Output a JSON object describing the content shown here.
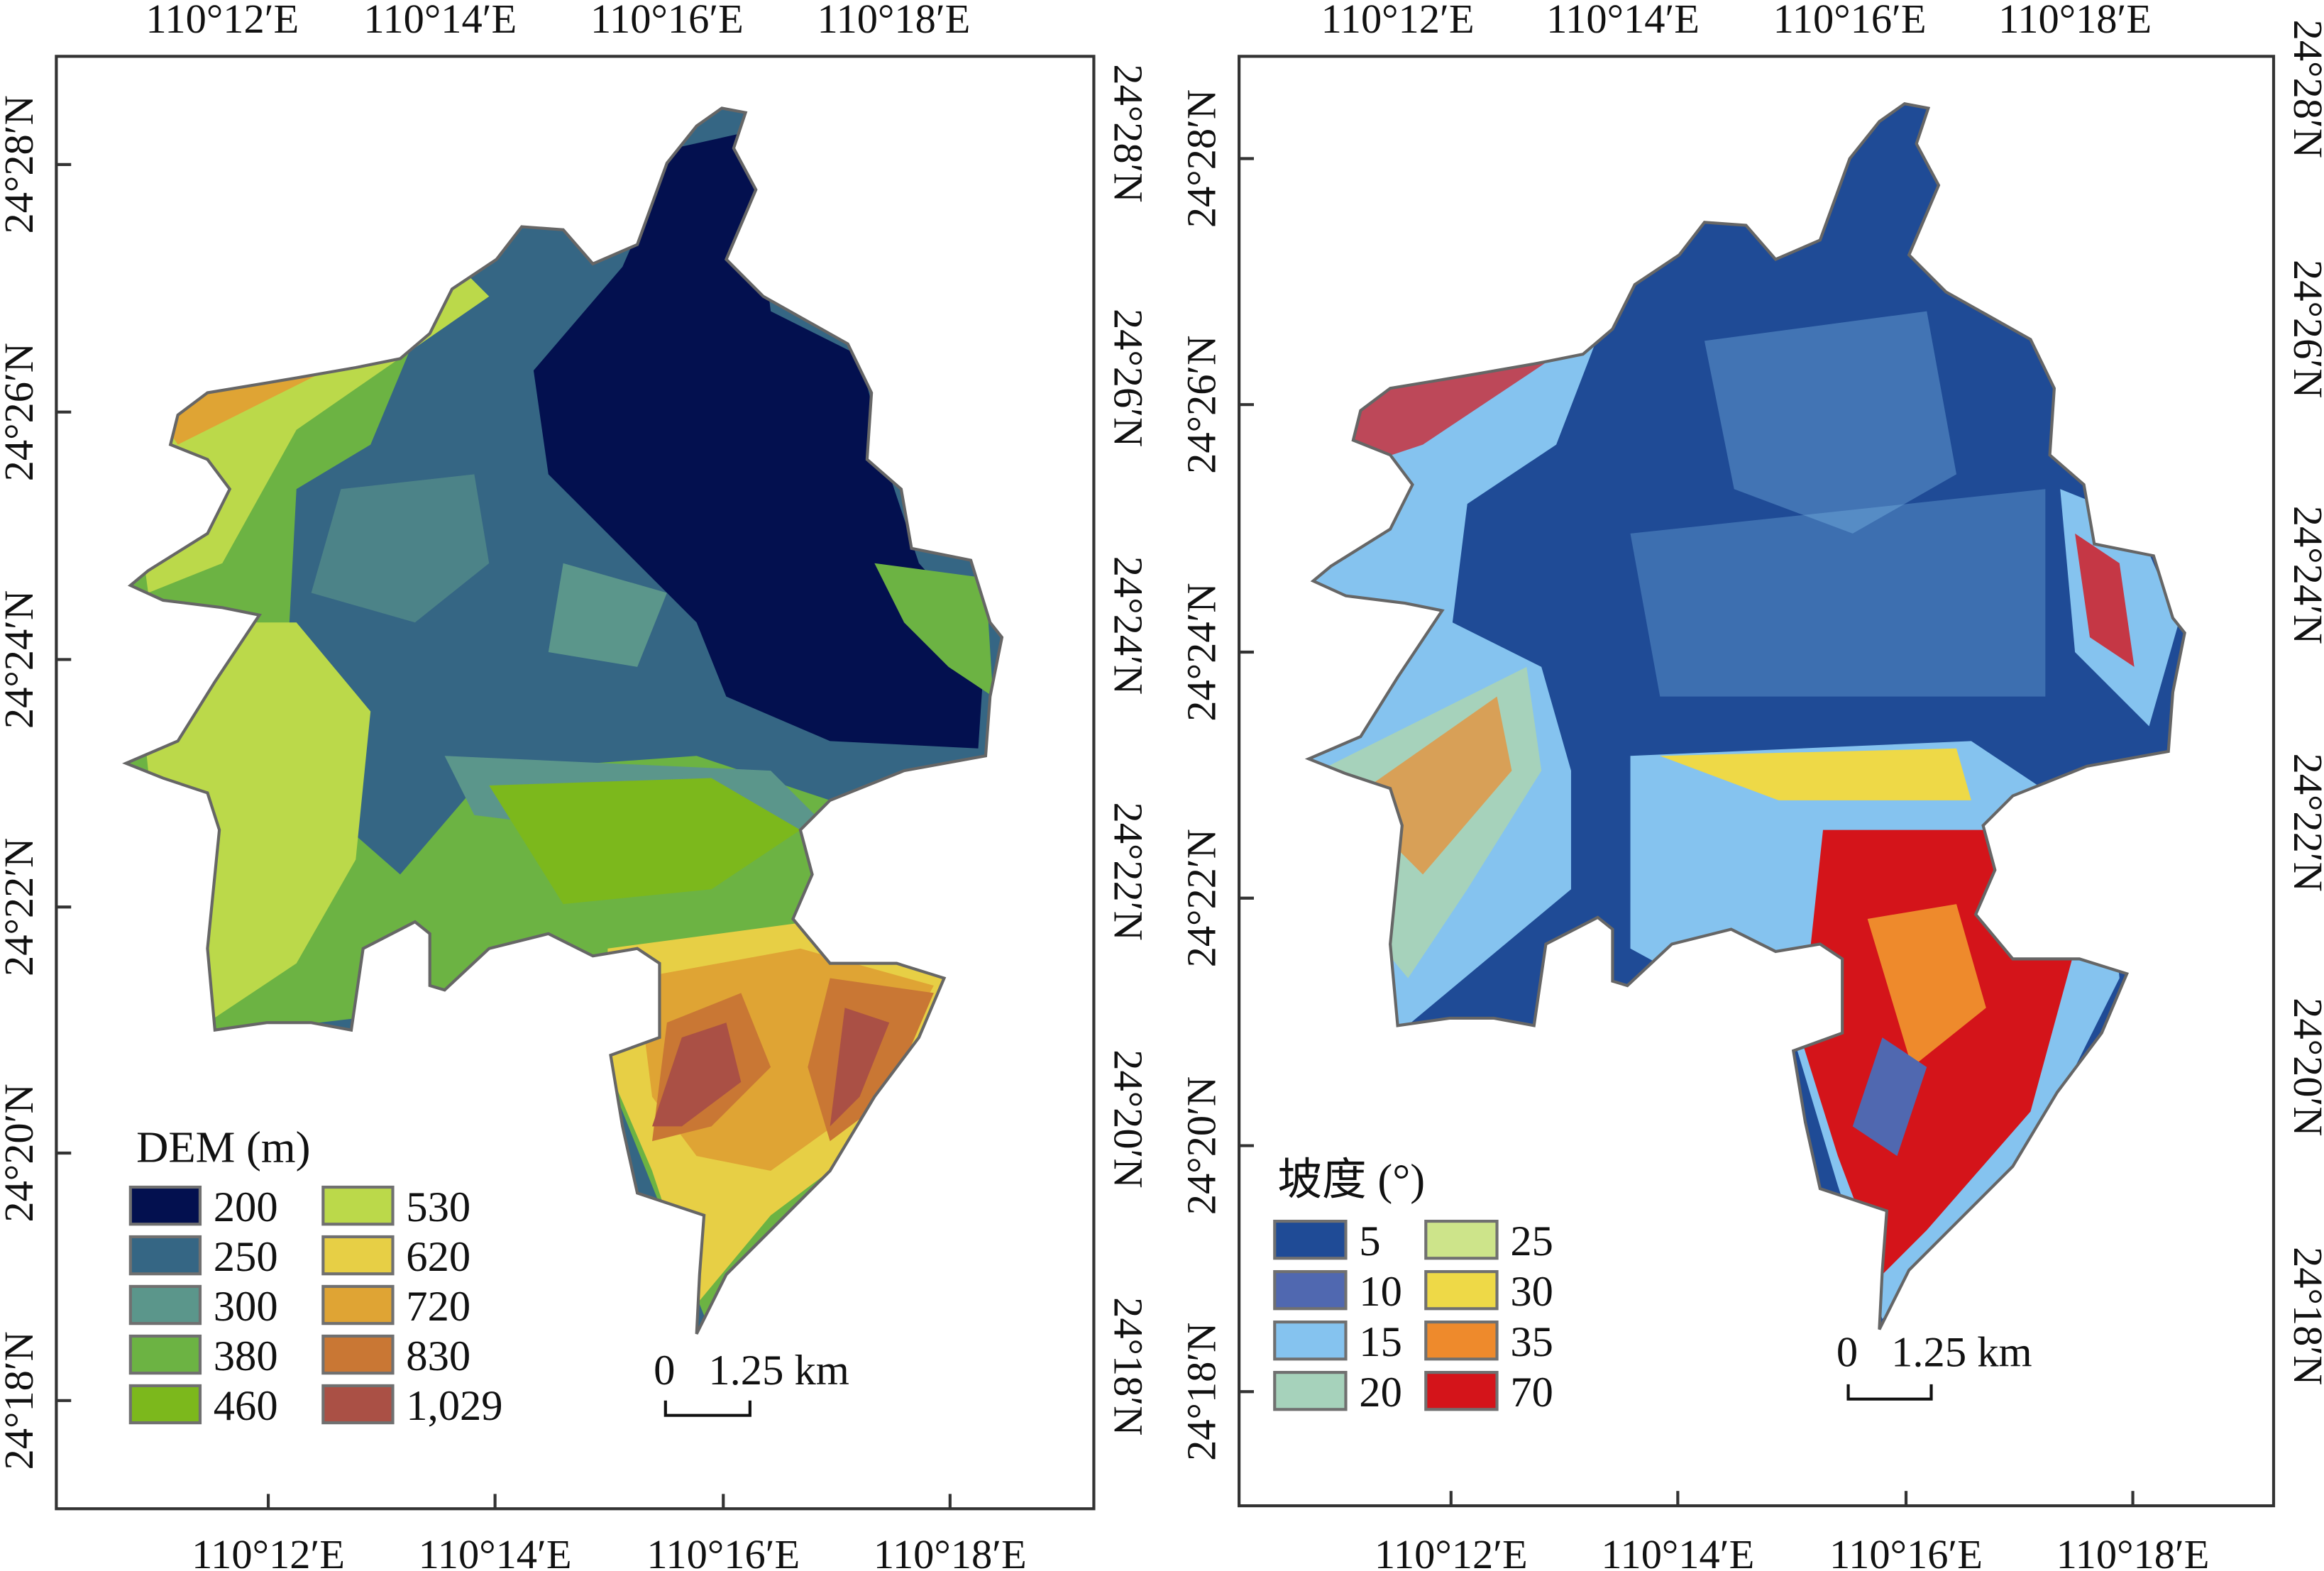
{
  "panels": [
    {
      "id": "dem",
      "top_lon_labels": [
        "110°12′E",
        "110°14′E",
        "110°16′E",
        "110°18′E"
      ],
      "bottom_lon_labels": [
        "110°12′E",
        "110°14′E",
        "110°16′E",
        "110°18′E"
      ],
      "left_lat_labels": [
        "24°28′N",
        "24°26′N",
        "24°24′N",
        "24°22′N",
        "24°20′N",
        "24°18′N"
      ],
      "right_lat_labels": [
        "24°28′N",
        "24°26′N",
        "24°24′N",
        "24°22′N",
        "24°20′N",
        "24°18′N"
      ],
      "legend": {
        "title": "DEM (m)",
        "items": [
          {
            "label": "200",
            "color": "#03104f"
          },
          {
            "label": "250",
            "color": "#356684"
          },
          {
            "label": "300",
            "color": "#5b968b"
          },
          {
            "label": "380",
            "color": "#6cb343"
          },
          {
            "label": "460",
            "color": "#7cb81c"
          },
          {
            "label": "530",
            "color": "#bbd94a"
          },
          {
            "label": "620",
            "color": "#e7cf45"
          },
          {
            "label": "720",
            "color": "#dfa434"
          },
          {
            "label": "830",
            "color": "#c97734"
          },
          {
            "label": "1,029",
            "color": "#aa5045"
          }
        ]
      },
      "scale_bar": {
        "start": "0",
        "end": "1.25 km"
      }
    },
    {
      "id": "slope",
      "top_lon_labels": [
        "110°12′E",
        "110°14′E",
        "110°16′E",
        "110°18′E"
      ],
      "bottom_lon_labels": [
        "110°12′E",
        "110°14′E",
        "110°16′E",
        "110°18′E"
      ],
      "left_lat_labels": [
        "24°28′N",
        "24°26′N",
        "24°24′N",
        "24°22′N",
        "24°20′N",
        "24°18′N"
      ],
      "right_lat_labels": [
        "24°28′N",
        "24°26′N",
        "24°24′N",
        "24°22′N",
        "24°20′N",
        "24°18′N"
      ],
      "legend": {
        "title": "坡度 (°)",
        "items": [
          {
            "label": "5",
            "color": "#1f4b96"
          },
          {
            "label": "10",
            "color": "#5068b0"
          },
          {
            "label": "15",
            "color": "#85c3ef"
          },
          {
            "label": "20",
            "color": "#a6d2bb"
          },
          {
            "label": "25",
            "color": "#cde48a"
          },
          {
            "label": "30",
            "color": "#eed947"
          },
          {
            "label": "35",
            "color": "#ee8a2c"
          },
          {
            "label": "70",
            "color": "#d4141a"
          }
        ]
      },
      "scale_bar": {
        "start": "0",
        "end": "1.25 km"
      }
    }
  ]
}
